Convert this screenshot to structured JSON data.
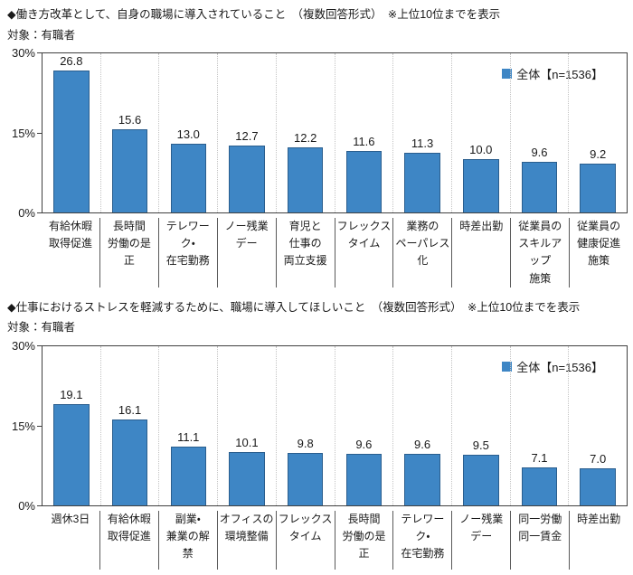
{
  "chart_data": [
    {
      "type": "bar",
      "title": "◆働き方改革として、自身の職場に導入されていること　（複数回答形式）　※上位10位までを表示",
      "subject": "対象：有職者",
      "legend": "全体【n=1536】",
      "legend_position": "top-right",
      "categories": [
        "有給休暇\n取得促進",
        "長時間\n労働の是正",
        "テレワーク・\n在宅勤務",
        "ノー残業\nデー",
        "育児と\n仕事の\n両立支援",
        "フレックス\nタイム",
        "業務の\nペーパレス化",
        "時差出勤",
        "従業員の\nスキルアップ\n施策",
        "従業員の\n健康促進\n施策"
      ],
      "values": [
        26.8,
        15.6,
        13.0,
        12.7,
        12.2,
        11.6,
        11.3,
        10.0,
        9.6,
        9.2
      ],
      "ylim": [
        0,
        30
      ],
      "y_ticks": [
        {
          "label": "30%",
          "value": 30
        },
        {
          "label": "15%",
          "value": 15
        },
        {
          "label": "0%",
          "value": 0
        }
      ],
      "bar_color": "#3e86c5",
      "bar_border_color": "#2a5e8e",
      "grid": "vertical dotted category separators, no horizontal gridlines"
    },
    {
      "type": "bar",
      "title": "◆仕事におけるストレスを軽減するために、職場に導入してほしいこと　（複数回答形式）　※上位10位までを表示",
      "subject": "対象：有職者",
      "legend": "全体【n=1536】",
      "legend_position": "top-right",
      "categories": [
        "週休3日",
        "有給休暇\n取得促進",
        "副業・\n兼業の解禁",
        "オフィスの\n環境整備",
        "フレックス\nタイム",
        "長時間\n労働の是正",
        "テレワーク・\n在宅勤務",
        "ノー残業\nデー",
        "同一労働\n同一賃金",
        "時差出勤"
      ],
      "values": [
        19.1,
        16.1,
        11.1,
        10.1,
        9.8,
        9.6,
        9.6,
        9.5,
        7.1,
        7.0
      ],
      "ylim": [
        0,
        30
      ],
      "y_ticks": [
        {
          "label": "30%",
          "value": 30
        },
        {
          "label": "15%",
          "value": 15
        },
        {
          "label": "0%",
          "value": 0
        }
      ],
      "bar_color": "#3e86c5",
      "bar_border_color": "#2a5e8e",
      "grid": "vertical dotted category separators, no horizontal gridlines"
    }
  ]
}
